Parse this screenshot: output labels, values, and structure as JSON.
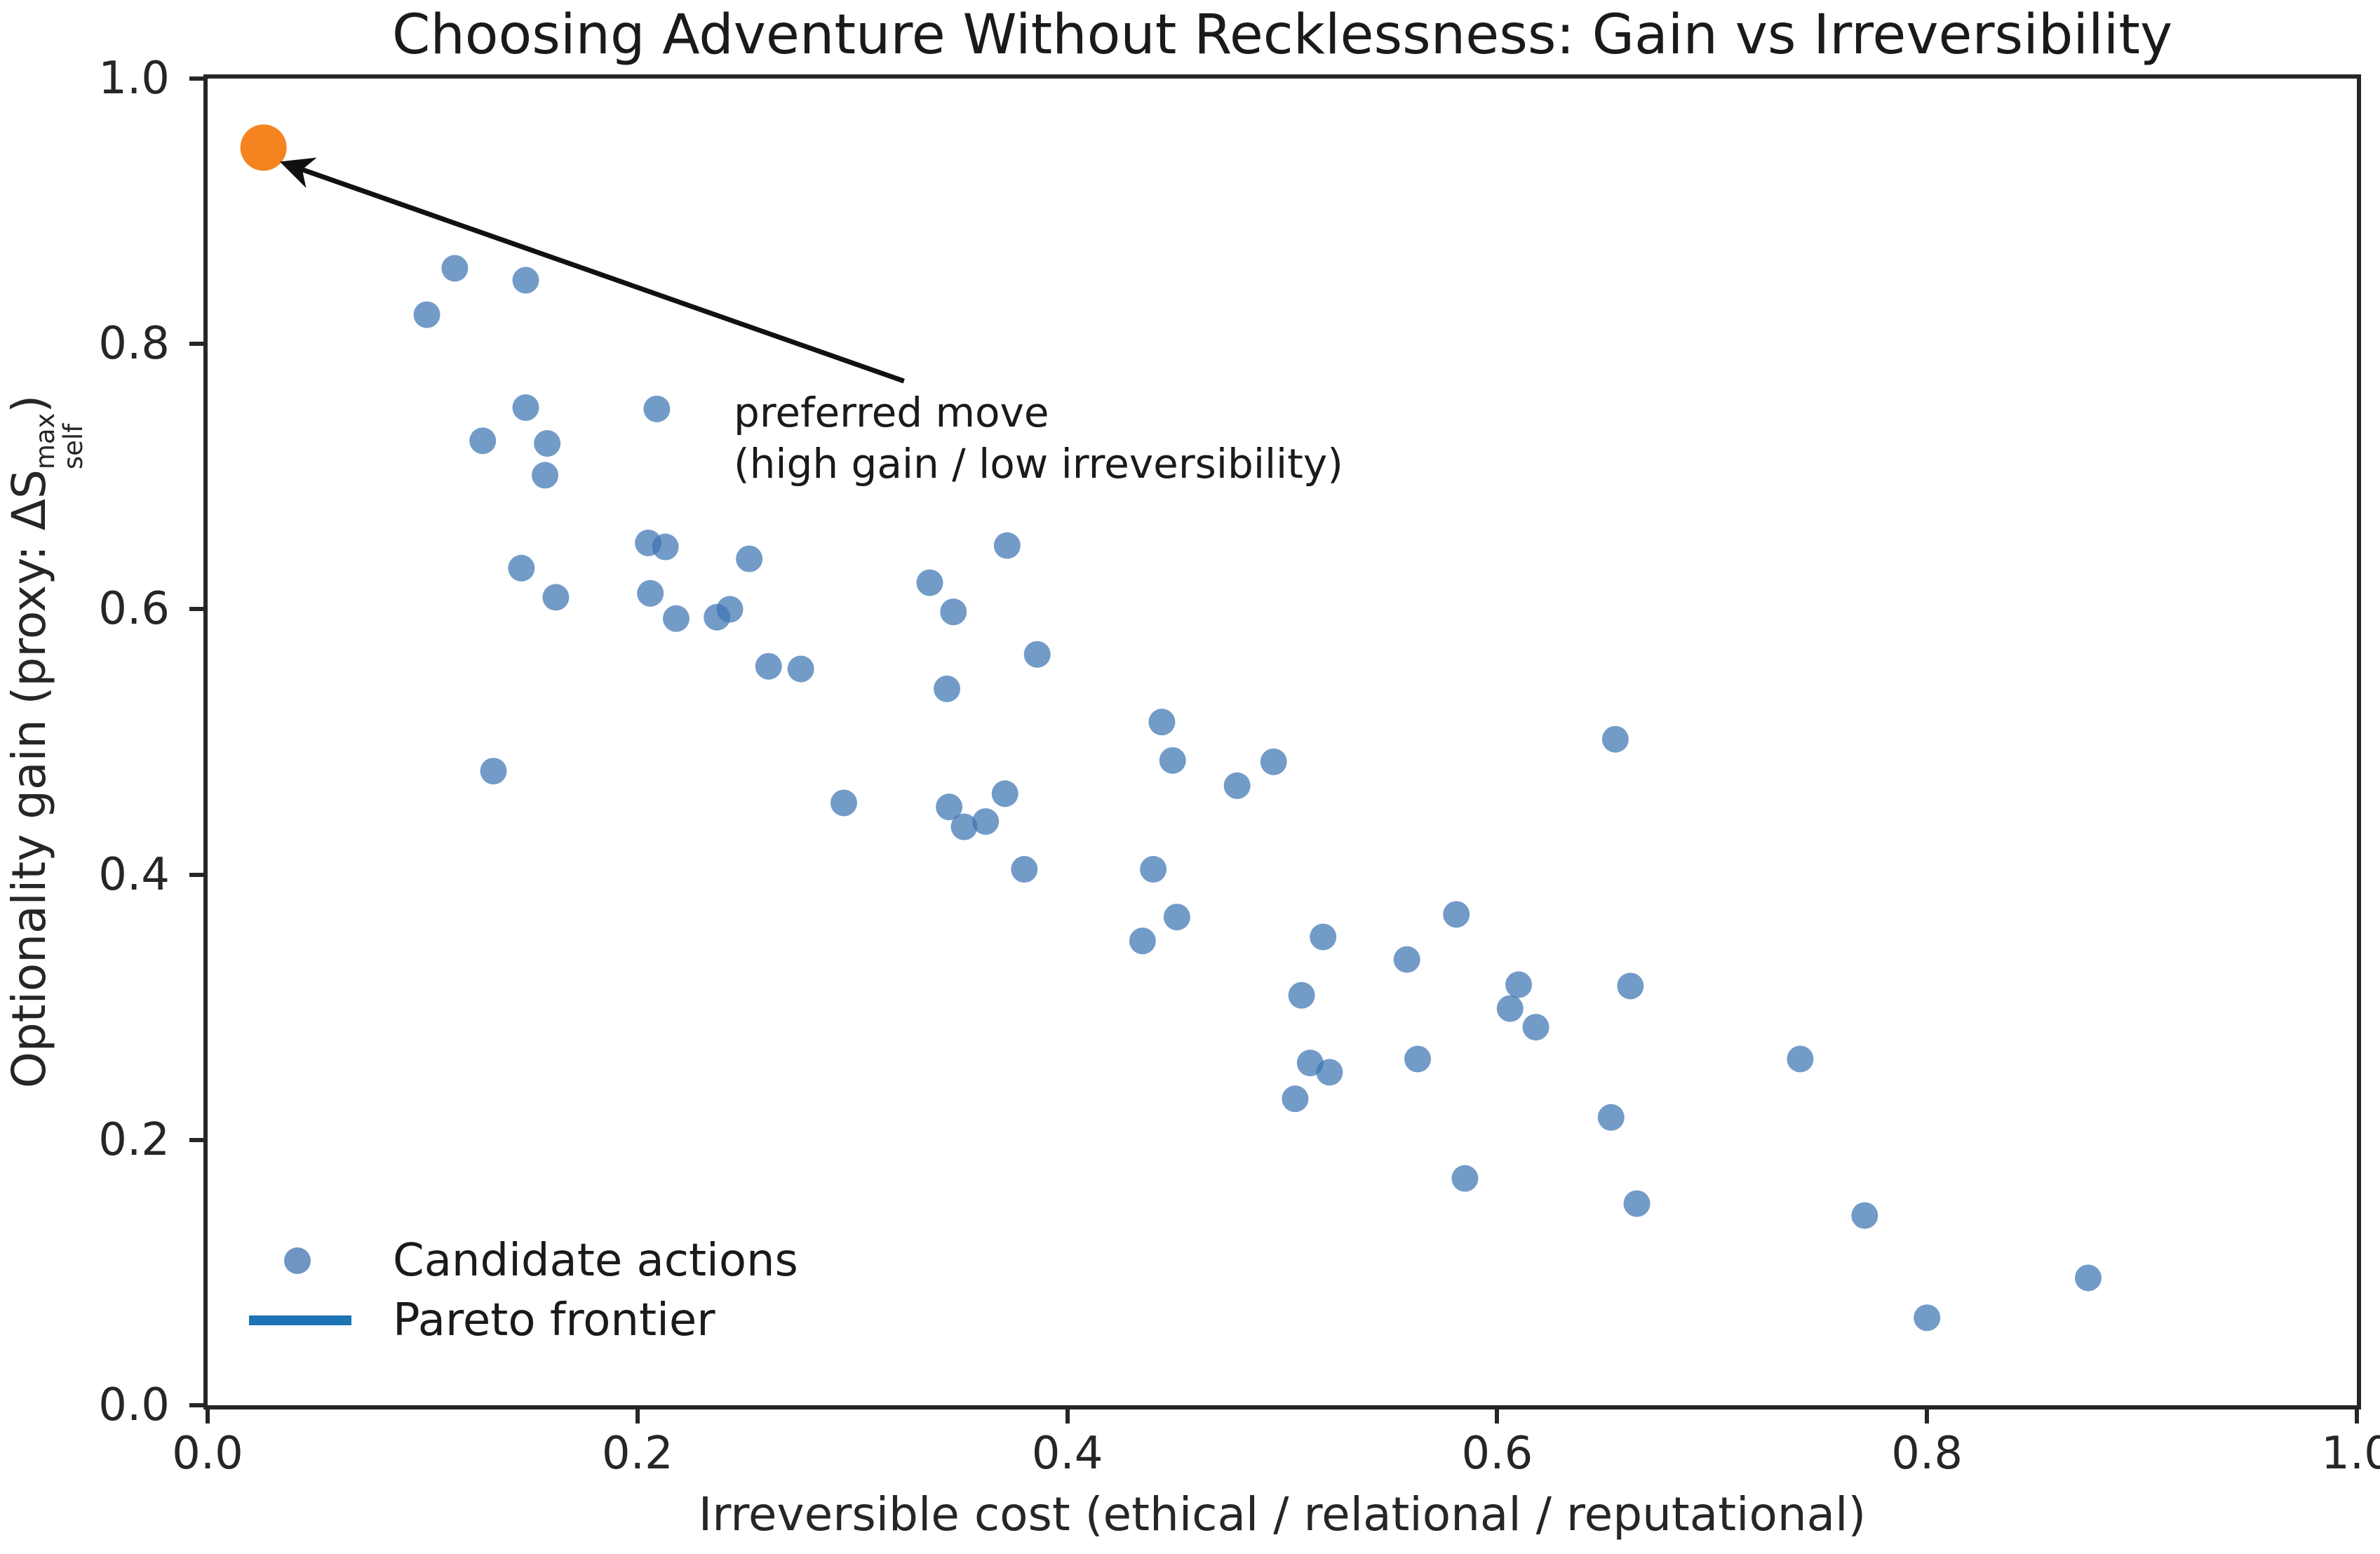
{
  "title": "Choosing Adventure Without Recklessness: Gain vs Irreversibility",
  "axes": {
    "xlabel": "Irreversible cost (ethical / relational / reputational)",
    "ylabel": {
      "pre": "Optionality gain (proxy: ΔS",
      "sup": "max",
      "sub": "self",
      "post": ")"
    },
    "x_ticks": [
      "0.0",
      "0.2",
      "0.4",
      "0.6",
      "0.8",
      "1.0"
    ],
    "y_ticks": [
      "0.0",
      "0.2",
      "0.4",
      "0.6",
      "0.8",
      "1.0"
    ],
    "xlim": [
      0,
      1
    ],
    "ylim": [
      0,
      1
    ]
  },
  "legend": {
    "items": [
      {
        "label": "Candidate actions",
        "marker": "dot-icon"
      },
      {
        "label": "Pareto frontier",
        "marker": "line-icon"
      }
    ],
    "position": "lower left"
  },
  "annotation": {
    "line1": "preferred move",
    "line2": "(high gain / low irreversibility)",
    "arrow_from_data": [
      0.324,
      0.772
    ],
    "arrow_to_data": [
      0.036,
      0.936
    ]
  },
  "colors": {
    "candidate_fill": "#3d74b3",
    "candidate_fill_opacity": 0.72,
    "preferred_fill": "#f5831f",
    "frontier_line": "#1d74b4",
    "axis": "#262626",
    "arrow": "#111111"
  },
  "chart_data": {
    "type": "scatter",
    "title": "Choosing Adventure Without Recklessness: Gain vs Irreversibility",
    "xlabel": "Irreversible cost (ethical / relational / reputational)",
    "ylabel": "Optionality gain (proxy: ΔS_self^max)",
    "xlim": [
      0,
      1
    ],
    "ylim": [
      0,
      1
    ],
    "grid": false,
    "legend_position": "lower left",
    "series": [
      {
        "name": "Candidate actions",
        "marker": "circle",
        "points": [
          [
            0.115,
            0.857
          ],
          [
            0.148,
            0.848
          ],
          [
            0.102,
            0.822
          ],
          [
            0.148,
            0.752
          ],
          [
            0.209,
            0.751
          ],
          [
            0.128,
            0.727
          ],
          [
            0.158,
            0.725
          ],
          [
            0.157,
            0.701
          ],
          [
            0.205,
            0.65
          ],
          [
            0.213,
            0.647
          ],
          [
            0.252,
            0.638
          ],
          [
            0.146,
            0.631
          ],
          [
            0.206,
            0.612
          ],
          [
            0.162,
            0.609
          ],
          [
            0.218,
            0.593
          ],
          [
            0.237,
            0.594
          ],
          [
            0.243,
            0.6
          ],
          [
            0.261,
            0.557
          ],
          [
            0.276,
            0.555
          ],
          [
            0.336,
            0.62
          ],
          [
            0.372,
            0.648
          ],
          [
            0.347,
            0.598
          ],
          [
            0.386,
            0.566
          ],
          [
            0.344,
            0.54
          ],
          [
            0.133,
            0.478
          ],
          [
            0.296,
            0.454
          ],
          [
            0.371,
            0.461
          ],
          [
            0.345,
            0.451
          ],
          [
            0.352,
            0.436
          ],
          [
            0.362,
            0.44
          ],
          [
            0.38,
            0.404
          ],
          [
            0.44,
            0.404
          ],
          [
            0.444,
            0.515
          ],
          [
            0.449,
            0.486
          ],
          [
            0.479,
            0.467
          ],
          [
            0.496,
            0.485
          ],
          [
            0.451,
            0.368
          ],
          [
            0.435,
            0.35
          ],
          [
            0.655,
            0.502
          ],
          [
            0.519,
            0.353
          ],
          [
            0.558,
            0.336
          ],
          [
            0.581,
            0.37
          ],
          [
            0.61,
            0.317
          ],
          [
            0.606,
            0.299
          ],
          [
            0.662,
            0.316
          ],
          [
            0.509,
            0.309
          ],
          [
            0.618,
            0.285
          ],
          [
            0.563,
            0.261
          ],
          [
            0.513,
            0.258
          ],
          [
            0.522,
            0.251
          ],
          [
            0.741,
            0.261
          ],
          [
            0.506,
            0.231
          ],
          [
            0.653,
            0.217
          ],
          [
            0.585,
            0.171
          ],
          [
            0.665,
            0.152
          ],
          [
            0.771,
            0.143
          ],
          [
            0.875,
            0.096
          ],
          [
            0.8,
            0.066
          ]
        ]
      },
      {
        "name": "preferred move",
        "marker": "circle-large",
        "points": [
          [
            0.026,
            0.948
          ]
        ]
      }
    ]
  }
}
